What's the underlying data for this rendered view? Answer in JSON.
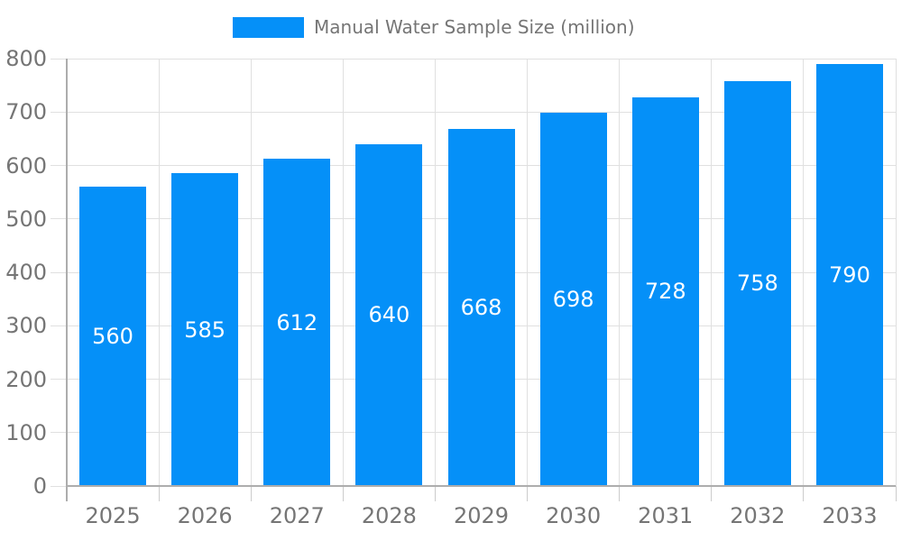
{
  "legend": {
    "label": "Manual Water Sample Size (million)"
  },
  "chart_data": {
    "type": "bar",
    "title": "Manual Water Sample Size (million)",
    "categories": [
      "2025",
      "2026",
      "2027",
      "2028",
      "2029",
      "2030",
      "2031",
      "2032",
      "2033"
    ],
    "series": [
      {
        "name": "Manual Water Sample Size (million)",
        "values": [
          560,
          585,
          612,
          640,
          668,
          698,
          728,
          758,
          790
        ]
      }
    ],
    "values": [
      560,
      585,
      612,
      640,
      668,
      698,
      728,
      758,
      790
    ],
    "bar_value_labels": [
      "560",
      "585",
      "612",
      "640",
      "668",
      "698",
      "728",
      "758",
      "790"
    ],
    "xlabel": "",
    "ylabel": "",
    "ylim": [
      0,
      800
    ],
    "yticks": [
      0,
      100,
      200,
      300,
      400,
      500,
      600,
      700,
      800
    ],
    "grid": true,
    "legend_position": "top",
    "value_labels_inside_bars": true,
    "colors": {
      "bar": "#0590F8",
      "bar_label": "#ffffff",
      "axis_text": "#757575",
      "gridline": "#e0e0e0",
      "tick": "#cccccc",
      "axis_line": "#adadad",
      "background": "#ffffff"
    }
  }
}
